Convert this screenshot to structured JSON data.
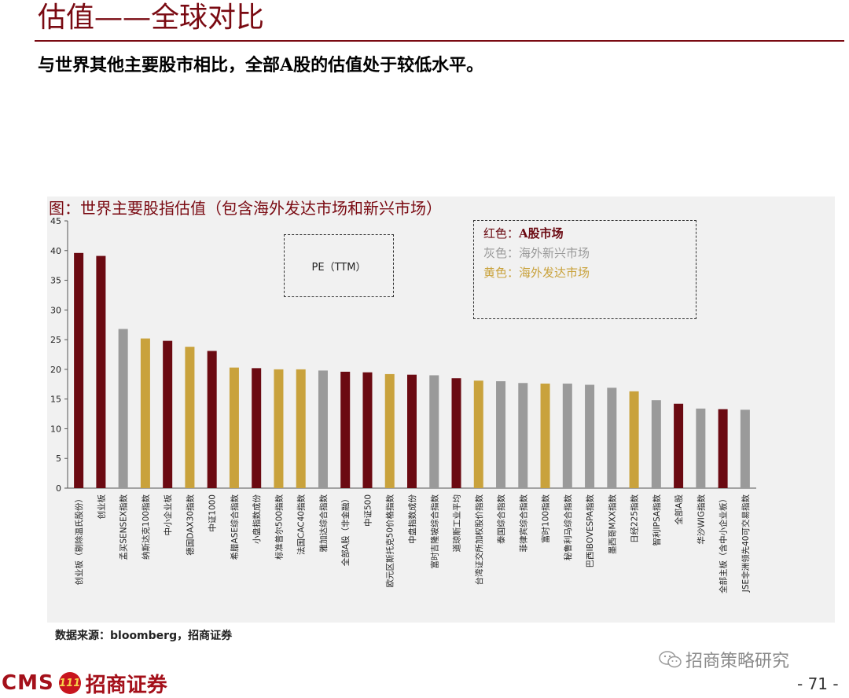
{
  "header": {
    "title": "估值——全球对比",
    "subtitle": "与世界其他主要股市相比，全部A股的估值处于较低水平。"
  },
  "figure": {
    "caption": "图：世界主要股指估值（包含海外发达市场和新兴市场）",
    "pe_label": "PE（TTM）",
    "legend": [
      {
        "prefix": "红色：",
        "label": "A股市场",
        "color": "#6b0a12"
      },
      {
        "prefix": "灰色：",
        "label": "海外新兴市场",
        "color": "#9a9a9a"
      },
      {
        "prefix": "黄色：",
        "label": "海外发达市场",
        "color": "#c9a23c"
      }
    ]
  },
  "colors": {
    "red": "#6b0a12",
    "gray": "#9a9a9a",
    "gold": "#c9a23c"
  },
  "chart_data": {
    "type": "bar",
    "ylim": [
      0,
      45
    ],
    "yticks": [
      0,
      5,
      10,
      15,
      20,
      25,
      30,
      35,
      40,
      45
    ],
    "categories": [
      "创业板（剔除温氏股份）",
      "创业板",
      "孟买SENSEX指数",
      "纳斯达克100指数",
      "中小企业板",
      "德国DAX30指数",
      "中证1000",
      "希腊ASE综合指数",
      "小盘指数成份",
      "标准普尔500指数",
      "法国CAC40指数",
      "雅加达综合指数",
      "全部A股（非金融）",
      "中证500",
      "欧元区斯托克50价格指数",
      "中盘指数成份",
      "富时吉隆坡综合指数",
      "道琼斯工业平均",
      "台湾证交所加权股价指数",
      "泰国综合指数",
      "菲律宾综合指数",
      "富时100指数",
      "秘鲁利马综合指数",
      "巴西IBOVESPA指数",
      "墨西哥MXX指数",
      "日经225指数",
      "智利IPSA指数",
      "全部A股",
      "华沙WIG指数",
      "全部主板（含中小企业板）",
      "JSE非洲领先40可交易指数"
    ],
    "values": [
      39.6,
      39.1,
      26.8,
      25.2,
      24.8,
      23.8,
      23.1,
      20.3,
      20.2,
      20.0,
      20.0,
      19.8,
      19.6,
      19.5,
      19.2,
      19.1,
      19.0,
      18.5,
      18.1,
      18.0,
      17.7,
      17.6,
      17.6,
      17.4,
      16.9,
      16.3,
      14.8,
      14.2,
      13.4,
      13.3,
      13.2
    ],
    "groups": [
      "red",
      "red",
      "gray",
      "gold",
      "red",
      "gold",
      "red",
      "gold",
      "red",
      "gold",
      "gold",
      "gray",
      "red",
      "red",
      "gold",
      "red",
      "gray",
      "red",
      "gold",
      "gray",
      "gray",
      "gold",
      "gray",
      "gray",
      "gray",
      "gold",
      "gray",
      "red",
      "gray",
      "red",
      "gray"
    ]
  },
  "footer": {
    "source": "数据来源：bloomberg，招商证券",
    "watermark": "招商策略研究",
    "logo_latin": "CMS",
    "logo_mark": "111",
    "logo_cn": "招商证券",
    "page_number": "- 71 -"
  }
}
